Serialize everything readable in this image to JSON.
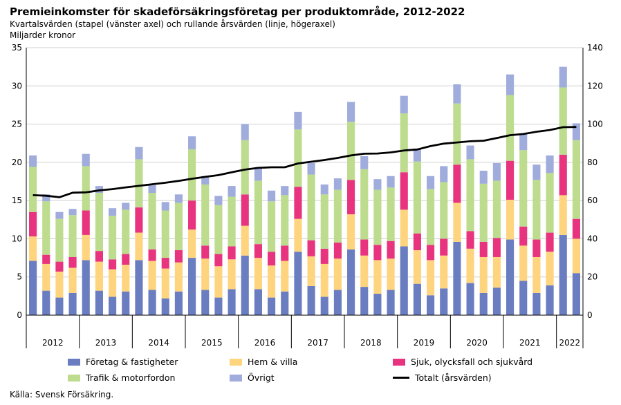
{
  "title": "Premieinkomster för skadeförsäkringsföretag per produktområde, 2012-2022",
  "subtitle": "Kvartalsvärden (stapel (vänster axel) och rullande årsvärden (linje, högeraxel)",
  "unit_label": "Miljarder kronor",
  "source": "Källa: Svensk Försäkring.",
  "chart_data": {
    "type": "bar",
    "stacked": true,
    "years": [
      "2012",
      "2013",
      "2014",
      "2015",
      "2016",
      "2017",
      "2018",
      "2019",
      "2020",
      "2021",
      "2022"
    ],
    "quarters_per_year": [
      4,
      4,
      4,
      4,
      4,
      4,
      4,
      4,
      4,
      4,
      2
    ],
    "ylim_left": [
      0,
      35
    ],
    "yticks_left": [
      0,
      5,
      10,
      15,
      20,
      25,
      30,
      35
    ],
    "ylim_right": [
      0,
      140
    ],
    "yticks_right": [
      0,
      20,
      40,
      60,
      80,
      100,
      120,
      140
    ],
    "grid": "horizontal",
    "legend_position": "bottom",
    "series": [
      {
        "name": "Företag & fastigheter",
        "color": "#6A7DC1",
        "values": [
          7.1,
          3.2,
          2.3,
          2.9,
          7.2,
          3.2,
          2.4,
          3.1,
          7.2,
          3.3,
          2.2,
          3.1,
          7.5,
          3.3,
          2.3,
          3.4,
          7.8,
          3.4,
          2.3,
          3.1,
          8.3,
          3.8,
          2.4,
          3.3,
          8.6,
          3.7,
          2.8,
          3.3,
          9.0,
          4.1,
          2.6,
          3.5,
          9.6,
          4.2,
          2.9,
          3.6,
          9.9,
          4.5,
          2.9,
          3.9,
          10.5,
          5.5
        ]
      },
      {
        "name": "Hem & villa",
        "color": "#FED47F",
        "values": [
          3.2,
          3.5,
          3.4,
          3.3,
          3.3,
          3.8,
          3.6,
          3.5,
          3.6,
          3.8,
          3.9,
          3.8,
          3.7,
          4.1,
          4.1,
          3.9,
          3.9,
          4.1,
          4.2,
          4.0,
          4.3,
          3.9,
          4.3,
          4.1,
          4.6,
          4.1,
          4.4,
          4.1,
          4.8,
          4.4,
          4.6,
          4.3,
          5.1,
          4.5,
          4.7,
          4.0,
          5.2,
          4.6,
          4.7,
          4.4,
          5.2,
          4.5
        ]
      },
      {
        "name": "Sjuk, olycksfall och sjukvård",
        "color": "#E8347E",
        "values": [
          3.2,
          1.2,
          1.3,
          1.4,
          3.2,
          1.4,
          1.3,
          1.4,
          3.3,
          1.5,
          1.4,
          1.6,
          3.8,
          1.7,
          1.6,
          1.7,
          4.1,
          1.8,
          1.8,
          2.0,
          4.2,
          2.1,
          2.0,
          2.1,
          4.5,
          2.1,
          2.0,
          2.3,
          4.9,
          2.2,
          2.0,
          2.2,
          5.0,
          2.3,
          2.0,
          2.5,
          5.1,
          2.5,
          2.3,
          2.5,
          5.3,
          2.6
        ]
      },
      {
        "name": "Trafik & motorfordon",
        "color": "#BDDC8E",
        "values": [
          5.9,
          7.0,
          5.6,
          5.5,
          5.8,
          7.6,
          5.7,
          5.8,
          6.3,
          7.4,
          6.2,
          6.2,
          6.7,
          8.0,
          6.4,
          6.5,
          7.1,
          8.3,
          6.6,
          6.6,
          7.5,
          8.6,
          7.1,
          6.9,
          7.6,
          9.2,
          7.2,
          7.0,
          7.7,
          9.4,
          7.3,
          7.4,
          8.0,
          9.4,
          7.6,
          7.5,
          8.6,
          10.0,
          7.8,
          7.8,
          8.8,
          10.3
        ]
      },
      {
        "name": "Övrigt",
        "color": "#A0ACDB",
        "values": [
          1.5,
          0.9,
          0.9,
          0.8,
          1.6,
          0.9,
          1.0,
          0.9,
          1.6,
          1.0,
          1.1,
          1.1,
          1.7,
          1.1,
          1.2,
          1.4,
          2.1,
          1.6,
          1.4,
          1.2,
          2.3,
          1.5,
          1.3,
          1.5,
          2.6,
          1.7,
          1.4,
          1.5,
          2.3,
          1.7,
          1.7,
          2.1,
          2.5,
          1.8,
          1.7,
          2.3,
          2.7,
          2.1,
          2.0,
          2.3,
          2.7,
          2.2
        ]
      }
    ],
    "line": {
      "name": "Totalt (årsvärden)",
      "color": "#000000",
      "values": [
        62.8,
        62.5,
        61.7,
        64.1,
        64.3,
        65.3,
        66.0,
        66.9,
        67.7,
        68.5,
        69.3,
        70.3,
        71.4,
        72.4,
        73.3,
        74.8,
        76.2,
        77.1,
        77.4,
        77.4,
        79.4,
        80.3,
        81.2,
        82.3,
        83.6,
        84.5,
        84.6,
        85.2,
        86.2,
        86.7,
        88.5,
        89.8,
        90.4,
        91.0,
        91.3,
        92.7,
        94.2,
        94.8,
        96.0,
        96.9,
        98.4,
        98.5
      ]
    }
  }
}
